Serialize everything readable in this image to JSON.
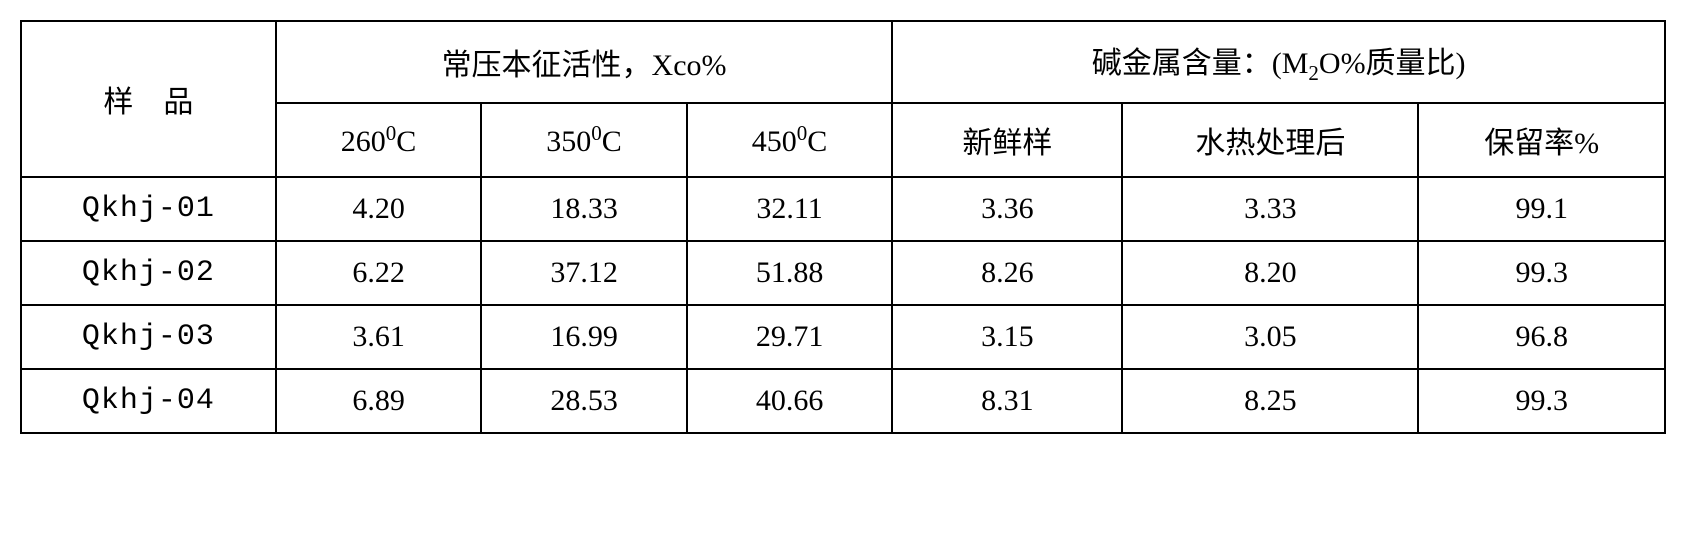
{
  "table": {
    "border_color": "#000000",
    "background_color": "#ffffff",
    "text_color": "#000000",
    "font_size_pt": 22,
    "row_header_label": "样　品",
    "group1_label": "常压本征活性，Xco%",
    "group2_label_prefix": "碱金属含量：",
    "group2_label_paren_open": "(M",
    "group2_label_sub": "2",
    "group2_label_rest": "O%质量比)",
    "sub_cols_group1": [
      {
        "num": "260",
        "sup": "0",
        "unit": "C"
      },
      {
        "num": "350",
        "sup": "0",
        "unit": "C"
      },
      {
        "num": "450",
        "sup": "0",
        "unit": "C"
      }
    ],
    "sub_cols_group2": [
      "新鲜样",
      "水热处理后",
      "保留率%"
    ],
    "rows": [
      {
        "sample": "Qkhj-01",
        "c260": "4.20",
        "c350": "18.33",
        "c450": "32.11",
        "fresh": "3.36",
        "after": "3.33",
        "retain": "99.1"
      },
      {
        "sample": "Qkhj-02",
        "c260": "6.22",
        "c350": "37.12",
        "c450": "51.88",
        "fresh": "8.26",
        "after": "8.20",
        "retain": "99.3"
      },
      {
        "sample": "Qkhj-03",
        "c260": "3.61",
        "c350": "16.99",
        "c450": "29.71",
        "fresh": "3.15",
        "after": "3.05",
        "retain": "96.8"
      },
      {
        "sample": "Qkhj-04",
        "c260": "6.89",
        "c350": "28.53",
        "c450": "40.66",
        "fresh": "8.31",
        "after": "8.25",
        "retain": "99.3"
      }
    ],
    "col_widths_pct": [
      15.5,
      12.5,
      12.5,
      12.5,
      14.0,
      18.0,
      15.0
    ]
  }
}
